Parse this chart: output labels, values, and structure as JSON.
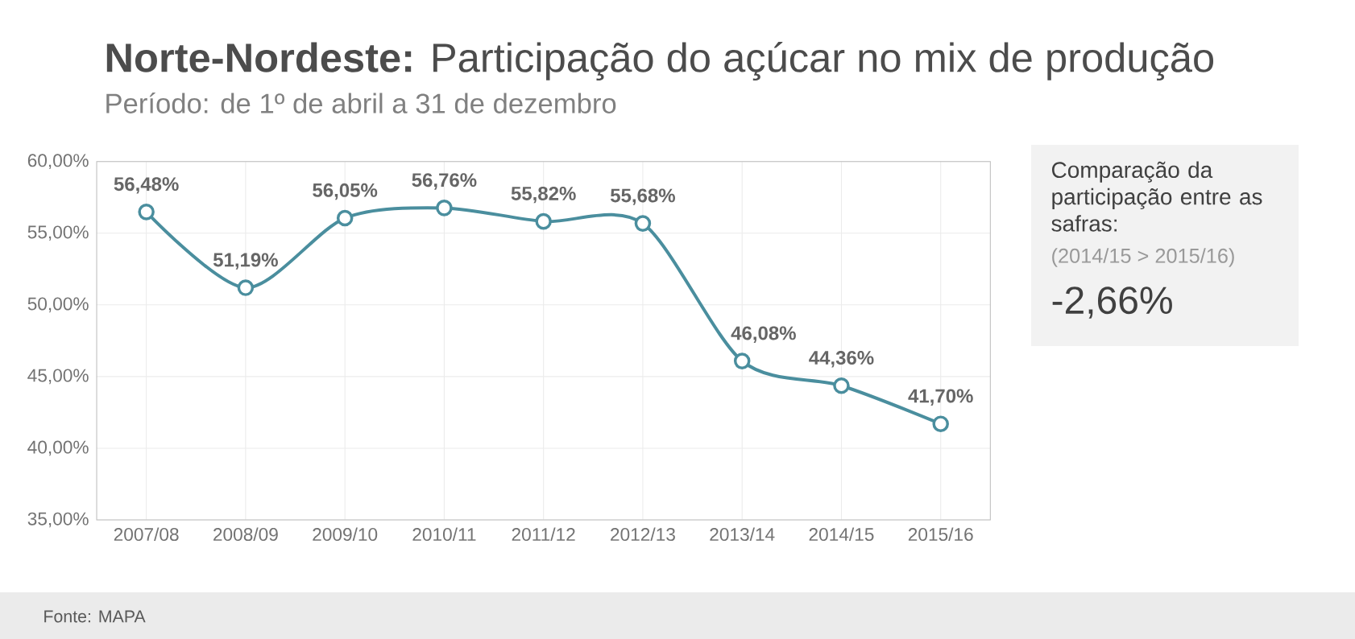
{
  "chart_data": {
    "type": "line",
    "title": "**Norte-Nordeste:** Participação do açúcar no mix de produção",
    "subtitle": "Período: de 1º de abril a 31 de dezembro",
    "categories": [
      "2007/08",
      "2008/09",
      "2009/10",
      "2010/11",
      "2011/12",
      "2012/13",
      "2013/14",
      "2014/15",
      "2015/16"
    ],
    "series": [
      {
        "color": "#4a8e9e",
        "values": [
          56.48,
          51.19,
          56.05,
          56.76,
          55.82,
          55.68,
          46.08,
          44.36,
          41.7
        ],
        "value_labels": [
          "56,48%",
          "51,19%",
          "56,05%",
          "56,76%",
          "55,82%",
          "55,68%",
          "46,08%",
          "44,36%",
          "41,70%"
        ]
      }
    ],
    "ylim": [
      35,
      60
    ],
    "yticks": [
      {
        "value": 35,
        "label": "35,00%"
      },
      {
        "value": 40,
        "label": "40,00%"
      },
      {
        "value": 45,
        "label": "45,00%"
      },
      {
        "value": 50,
        "label": "50,00%"
      },
      {
        "value": 55,
        "label": "55,00%"
      },
      {
        "value": 60,
        "label": "60,00%"
      }
    ],
    "grid": true,
    "marker": "circle",
    "line_style": "solid",
    "annotations": [
      "Comparação da participação entre as safras:",
      "(2014/15 > 2015/16)",
      "-2,66%",
      "Fonte: MAPA"
    ]
  }
}
